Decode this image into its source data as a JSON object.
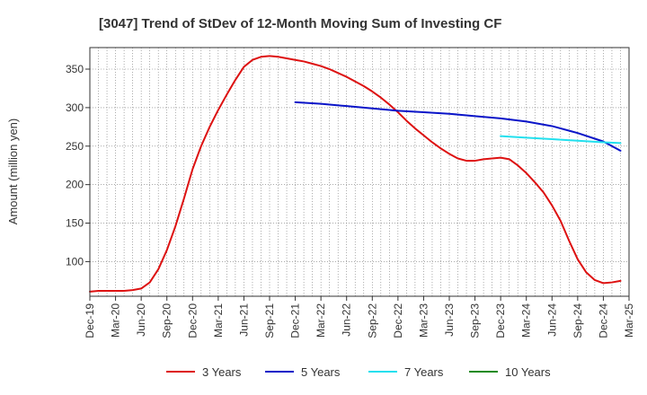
{
  "chart_data": {
    "type": "line",
    "title": "[3047]  Trend of StDev of 12-Month Moving Sum of Investing CF",
    "xlabel": "",
    "ylabel": "Amount (million yen)",
    "ylim": [
      55,
      378
    ],
    "yticks": [
      100,
      150,
      200,
      250,
      300,
      350
    ],
    "xlim": [
      "Dec-19",
      "Mar-25"
    ],
    "xticks": [
      "Dec-19",
      "Mar-20",
      "Jun-20",
      "Sep-20",
      "Dec-20",
      "Mar-21",
      "Jun-21",
      "Sep-21",
      "Dec-21",
      "Mar-22",
      "Jun-22",
      "Sep-22",
      "Dec-22",
      "Mar-23",
      "Jun-23",
      "Sep-23",
      "Dec-23",
      "Mar-24",
      "Jun-24",
      "Sep-24",
      "Dec-24",
      "Mar-25"
    ],
    "grid": true,
    "legend_position": "bottom",
    "series": [
      {
        "name": "3 Years",
        "color": "#dd1111",
        "points": [
          [
            "Dec-19",
            61
          ],
          [
            "Jan-20",
            62
          ],
          [
            "Feb-20",
            62
          ],
          [
            "Mar-20",
            62
          ],
          [
            "Apr-20",
            62
          ],
          [
            "May-20",
            63
          ],
          [
            "Jun-20",
            65
          ],
          [
            "Jul-20",
            73
          ],
          [
            "Aug-20",
            90
          ],
          [
            "Sep-20",
            115
          ],
          [
            "Oct-20",
            146
          ],
          [
            "Nov-20",
            182
          ],
          [
            "Dec-20",
            220
          ],
          [
            "Jan-21",
            250
          ],
          [
            "Feb-21",
            275
          ],
          [
            "Mar-21",
            297
          ],
          [
            "Apr-21",
            317
          ],
          [
            "May-21",
            336
          ],
          [
            "Jun-21",
            353
          ],
          [
            "Jul-21",
            362
          ],
          [
            "Aug-21",
            366
          ],
          [
            "Sep-21",
            367
          ],
          [
            "Oct-21",
            366
          ],
          [
            "Nov-21",
            364
          ],
          [
            "Dec-21",
            362
          ],
          [
            "Jan-22",
            360
          ],
          [
            "Feb-22",
            357
          ],
          [
            "Mar-22",
            354
          ],
          [
            "Apr-22",
            350
          ],
          [
            "May-22",
            345
          ],
          [
            "Jun-22",
            340
          ],
          [
            "Jul-22",
            334
          ],
          [
            "Aug-22",
            328
          ],
          [
            "Sep-22",
            321
          ],
          [
            "Oct-22",
            313
          ],
          [
            "Nov-22",
            304
          ],
          [
            "Dec-22",
            294
          ],
          [
            "Jan-23",
            283
          ],
          [
            "Feb-23",
            273
          ],
          [
            "Mar-23",
            264
          ],
          [
            "Apr-23",
            255
          ],
          [
            "May-23",
            247
          ],
          [
            "Jun-23",
            240
          ],
          [
            "Jul-23",
            234
          ],
          [
            "Aug-23",
            231
          ],
          [
            "Sep-23",
            231
          ],
          [
            "Oct-23",
            233
          ],
          [
            "Nov-23",
            234
          ],
          [
            "Dec-23",
            235
          ],
          [
            "Jan-24",
            233
          ],
          [
            "Feb-24",
            225
          ],
          [
            "Mar-24",
            215
          ],
          [
            "Apr-24",
            203
          ],
          [
            "May-24",
            190
          ],
          [
            "Jun-24",
            173
          ],
          [
            "Jul-24",
            153
          ],
          [
            "Aug-24",
            127
          ],
          [
            "Sep-24",
            103
          ],
          [
            "Oct-24",
            86
          ],
          [
            "Nov-24",
            76
          ],
          [
            "Dec-24",
            72
          ],
          [
            "Jan-25",
            73
          ],
          [
            "Feb-25",
            75
          ]
        ]
      },
      {
        "name": "5 Years",
        "color": "#0a14c8",
        "points": [
          [
            "Dec-21",
            307
          ],
          [
            "Mar-22",
            305
          ],
          [
            "Jun-22",
            302
          ],
          [
            "Sep-22",
            299
          ],
          [
            "Dec-22",
            296
          ],
          [
            "Mar-23",
            294
          ],
          [
            "Jun-23",
            292
          ],
          [
            "Sep-23",
            289
          ],
          [
            "Dec-23",
            286
          ],
          [
            "Mar-24",
            282
          ],
          [
            "Jun-24",
            276
          ],
          [
            "Sep-24",
            267
          ],
          [
            "Dec-24",
            256
          ],
          [
            "Feb-25",
            244
          ]
        ]
      },
      {
        "name": "7 Years",
        "color": "#22e0ee",
        "points": [
          [
            "Dec-23",
            263
          ],
          [
            "Mar-24",
            261
          ],
          [
            "Jun-24",
            259
          ],
          [
            "Sep-24",
            257
          ],
          [
            "Dec-24",
            255
          ],
          [
            "Feb-25",
            254
          ]
        ]
      },
      {
        "name": "10 Years",
        "color": "#1a8a1a",
        "points": []
      }
    ]
  }
}
